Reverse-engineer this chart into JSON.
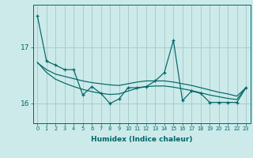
{
  "xlabel": "Humidex (Indice chaleur)",
  "bg_color": "#cceaea",
  "grid_color": "#aacccc",
  "line_color": "#006666",
  "x": [
    0,
    1,
    2,
    3,
    4,
    5,
    6,
    7,
    8,
    9,
    10,
    11,
    12,
    13,
    14,
    15,
    16,
    17,
    18,
    19,
    20,
    21,
    22,
    23
  ],
  "y_main": [
    17.55,
    16.75,
    16.68,
    16.6,
    16.6,
    16.15,
    16.3,
    16.18,
    16.0,
    16.08,
    16.28,
    16.28,
    16.3,
    16.4,
    16.55,
    17.12,
    16.05,
    16.22,
    16.18,
    16.02,
    16.02,
    16.02,
    16.02,
    16.28
  ],
  "y_trend1": [
    16.72,
    16.6,
    16.52,
    16.48,
    16.44,
    16.4,
    16.37,
    16.35,
    16.33,
    16.32,
    16.35,
    16.38,
    16.4,
    16.4,
    16.4,
    16.38,
    16.35,
    16.32,
    16.28,
    16.24,
    16.2,
    16.17,
    16.13,
    16.28
  ],
  "y_trend2": [
    16.73,
    16.55,
    16.43,
    16.36,
    16.3,
    16.25,
    16.21,
    16.18,
    16.16,
    16.17,
    16.22,
    16.27,
    16.3,
    16.31,
    16.31,
    16.29,
    16.26,
    16.23,
    16.19,
    16.15,
    16.12,
    16.09,
    16.07,
    16.28
  ],
  "yticks": [
    16,
    17
  ],
  "ylim": [
    15.65,
    17.75
  ],
  "xlim": [
    -0.5,
    23.5
  ],
  "xticks": [
    0,
    1,
    2,
    3,
    4,
    5,
    6,
    7,
    8,
    9,
    10,
    11,
    12,
    13,
    14,
    15,
    16,
    17,
    18,
    19,
    20,
    21,
    22,
    23
  ]
}
